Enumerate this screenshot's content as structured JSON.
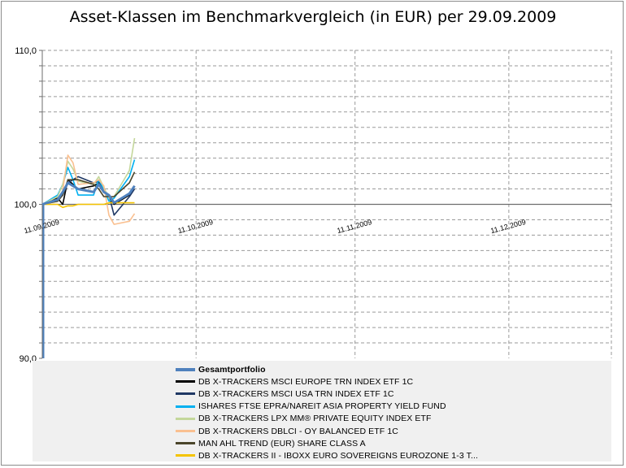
{
  "chart_data": {
    "type": "line",
    "title": "Asset-Klassen im Benchmarkvergleich (in EUR) per 29.09.2009",
    "ylim": [
      90,
      110
    ],
    "y_ticks": [
      "110,0",
      "100,0",
      "90,0"
    ],
    "x_range": [
      "11.09.2009",
      "31.12.2009"
    ],
    "x_ticks": [
      "11.09.2009",
      "11.10.2009",
      "11.11.2009",
      "11.12.2009"
    ],
    "grid": true,
    "legend_position": "bottom",
    "x": [
      "11.09.2009",
      "14.09.2009",
      "15.09.2009",
      "16.09.2009",
      "17.09.2009",
      "18.09.2009",
      "21.09.2009",
      "22.09.2009",
      "23.09.2009",
      "24.09.2009",
      "25.09.2009",
      "28.09.2009",
      "29.09.2009"
    ],
    "series": [
      {
        "name": "Gesamtportfolio",
        "color": "#4f81bd",
        "width": 3,
        "values": [
          100.0,
          100.3,
          100.8,
          101.4,
          101.2,
          101.0,
          100.8,
          101.3,
          100.8,
          100.6,
          100.1,
          100.7,
          101.2
        ]
      },
      {
        "name": "DB X-TRACKERS MSCI EUROPE TRN INDEX ETF 1C",
        "color": "#000000",
        "width": 1.6,
        "values": [
          100.0,
          100.4,
          100.0,
          101.6,
          101.3,
          101.0,
          101.2,
          101.4,
          100.9,
          100.5,
          100.0,
          100.6,
          101.2
        ]
      },
      {
        "name": "DB X-TRACKERS MSCI USA TRN INDEX ETF 1C",
        "color": "#1f3864",
        "width": 1.6,
        "values": [
          100.0,
          100.3,
          100.6,
          101.4,
          101.6,
          101.8,
          101.4,
          101.5,
          100.9,
          100.6,
          99.3,
          100.5,
          101.0
        ]
      },
      {
        "name": "ISHARES FTSE EPRA/NAREIT ASIA PROPERTY YIELD FUND",
        "color": "#00b0f0",
        "width": 1.6,
        "values": [
          100.0,
          100.6,
          101.3,
          102.4,
          101.6,
          100.6,
          100.6,
          101.6,
          101.0,
          100.2,
          100.4,
          101.8,
          102.9
        ]
      },
      {
        "name": "DB X-TRACKERS LPX MM® PRIVATE EQUITY INDEX ETF",
        "color": "#c4d79b",
        "width": 1.6,
        "values": [
          100.0,
          100.5,
          101.3,
          102.8,
          102.3,
          101.5,
          101.3,
          101.8,
          101.1,
          100.4,
          100.5,
          102.2,
          104.3
        ]
      },
      {
        "name": "DB X-TRACKERS DBLCI - OY BALANCED ETF 1C",
        "color": "#fac090",
        "width": 1.6,
        "values": [
          100.0,
          100.2,
          100.9,
          103.2,
          102.7,
          101.3,
          101.4,
          101.6,
          101.2,
          99.3,
          98.7,
          98.9,
          99.4
        ]
      },
      {
        "name": "MAN AHL TREND (EUR) SHARE CLASS A",
        "color": "#4a452a",
        "width": 1.6,
        "values": [
          100.0,
          100.2,
          100.6,
          101.6,
          101.6,
          101.6,
          101.3,
          101.0,
          100.5,
          100.5,
          100.5,
          101.4,
          102.1
        ]
      },
      {
        "name": "DB X-TRACKERS II - IBOXX EURO SOVEREIGNS EUROZONE 1-3 T...",
        "color": "#f5c400",
        "width": 1.6,
        "values": [
          100.0,
          100.0,
          99.8,
          99.9,
          99.9,
          100.0,
          100.0,
          100.0,
          100.0,
          100.1,
          100.1,
          100.1,
          100.1
        ]
      }
    ]
  }
}
